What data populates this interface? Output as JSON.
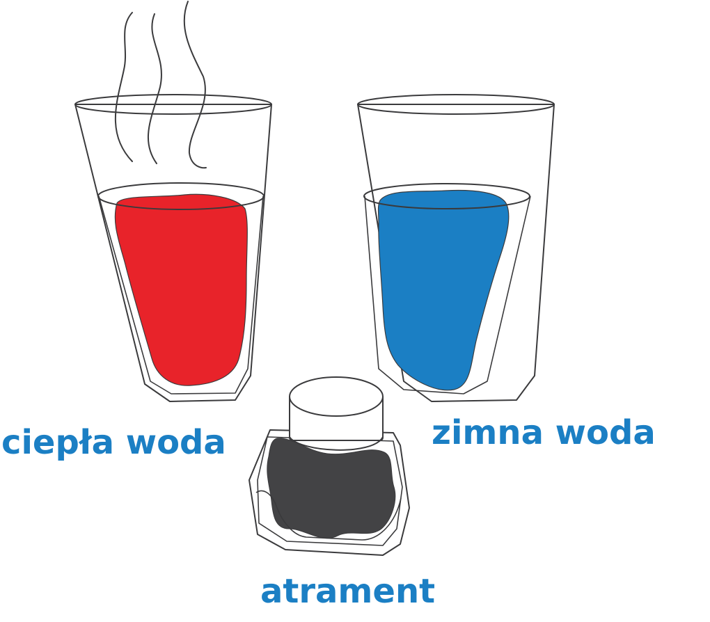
{
  "labels": {
    "warm_water": "ciepła woda",
    "cold_water": "zimna woda",
    "ink": "atrament"
  },
  "colors": {
    "warm_water": "#e8232a",
    "cold_water": "#1b7fc4",
    "ink": "#434345",
    "outline": "#3a3a3c",
    "label_text": "#1b7fc4"
  }
}
